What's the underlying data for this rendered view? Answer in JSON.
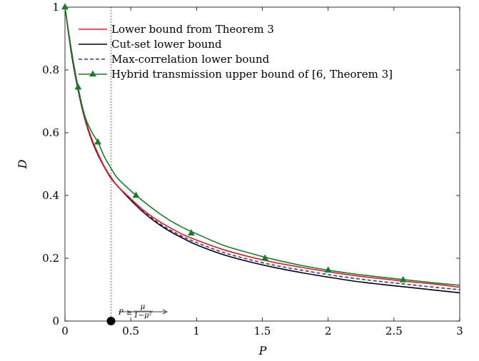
{
  "chart_data": {
    "type": "line",
    "title": "",
    "xlabel": "P",
    "ylabel": "D",
    "xlim": [
      0,
      3
    ],
    "ylim": [
      0,
      1
    ],
    "x_ticks": [
      0,
      0.5,
      1,
      1.5,
      2,
      2.5,
      3
    ],
    "x_tick_labels": [
      "0",
      "0.5",
      "1",
      "1.5",
      "2",
      "2.5",
      "3"
    ],
    "y_ticks": [
      0,
      0.2,
      0.4,
      0.6,
      0.8,
      1
    ],
    "y_tick_labels": [
      "0",
      "0.2",
      "0.4",
      "0.6",
      "0.8",
      "1"
    ],
    "grid": false,
    "legend_position": "top-left",
    "threshold_x": 0.35,
    "annotation": {
      "lhs": "P",
      "relation": "≥",
      "numerator": "μ",
      "denominator": "1−μ²"
    },
    "series": [
      {
        "name": "Lower bound from Theorem 3",
        "color": "#e31a1c",
        "dash": "solid",
        "marker": "none",
        "x": [
          0,
          0.05,
          0.1,
          0.15,
          0.2,
          0.25,
          0.3,
          0.35,
          0.4,
          0.5,
          0.6,
          0.7,
          0.8,
          0.9,
          1.0,
          1.2,
          1.4,
          1.6,
          1.8,
          2.0,
          2.2,
          2.4,
          2.6,
          2.8,
          3.0
        ],
        "y": [
          1.0,
          0.86,
          0.74,
          0.65,
          0.585,
          0.535,
          0.492,
          0.458,
          0.43,
          0.39,
          0.352,
          0.322,
          0.297,
          0.275,
          0.258,
          0.228,
          0.205,
          0.186,
          0.171,
          0.157,
          0.145,
          0.135,
          0.126,
          0.118,
          0.108
        ]
      },
      {
        "name": "Cut-set lower bound",
        "color": "#000000",
        "dash": "solid",
        "marker": "none",
        "x": [
          0,
          0.05,
          0.1,
          0.15,
          0.2,
          0.25,
          0.3,
          0.35,
          0.4,
          0.5,
          0.6,
          0.7,
          0.8,
          0.9,
          1.0,
          1.2,
          1.4,
          1.6,
          1.8,
          2.0,
          2.2,
          2.4,
          2.6,
          2.8,
          3.0
        ],
        "y": [
          1.0,
          0.85,
          0.735,
          0.645,
          0.58,
          0.53,
          0.49,
          0.455,
          0.43,
          0.385,
          0.345,
          0.312,
          0.285,
          0.263,
          0.243,
          0.212,
          0.189,
          0.17,
          0.154,
          0.14,
          0.127,
          0.117,
          0.108,
          0.099,
          0.09
        ]
      },
      {
        "name": "Max-correlation lower bound",
        "color": "#2b3f9e",
        "dash": "dashed",
        "marker": "none",
        "x": [
          0,
          0.05,
          0.1,
          0.15,
          0.2,
          0.25,
          0.3,
          0.35,
          0.4,
          0.5,
          0.6,
          0.7,
          0.8,
          0.9,
          1.0,
          1.2,
          1.4,
          1.6,
          1.8,
          2.0,
          2.2,
          2.4,
          2.6,
          2.8,
          3.0
        ],
        "y": [
          1.0,
          0.855,
          0.737,
          0.647,
          0.582,
          0.532,
          0.49,
          0.455,
          0.43,
          0.387,
          0.348,
          0.316,
          0.29,
          0.268,
          0.25,
          0.219,
          0.196,
          0.177,
          0.162,
          0.148,
          0.136,
          0.126,
          0.117,
          0.108,
          0.1
        ]
      },
      {
        "name": "Hybrid transmission upper bound of [6, Theorem 3]",
        "color": "#1a7a2e",
        "dash": "solid",
        "marker": "triangle",
        "x": [
          0,
          0.05,
          0.1,
          0.15,
          0.2,
          0.25,
          0.3,
          0.35,
          0.4,
          0.5,
          0.6,
          0.7,
          0.8,
          0.9,
          1.0,
          1.2,
          1.4,
          1.6,
          1.8,
          2.0,
          2.2,
          2.4,
          2.6,
          2.8,
          3.0
        ],
        "y": [
          1.0,
          0.86,
          0.745,
          0.655,
          0.605,
          0.57,
          0.523,
          0.487,
          0.455,
          0.415,
          0.38,
          0.348,
          0.32,
          0.297,
          0.278,
          0.242,
          0.217,
          0.195,
          0.177,
          0.162,
          0.15,
          0.14,
          0.131,
          0.122,
          0.114
        ]
      }
    ],
    "markers_at": [
      {
        "x": 0.0,
        "y": 1.0
      },
      {
        "x": 0.1,
        "y": 0.745
      },
      {
        "x": 0.25,
        "y": 0.57
      },
      {
        "x": 0.54,
        "y": 0.4
      },
      {
        "x": 0.96,
        "y": 0.28
      },
      {
        "x": 1.52,
        "y": 0.2
      },
      {
        "x": 2.0,
        "y": 0.162
      },
      {
        "x": 2.57,
        "y": 0.131
      }
    ]
  }
}
